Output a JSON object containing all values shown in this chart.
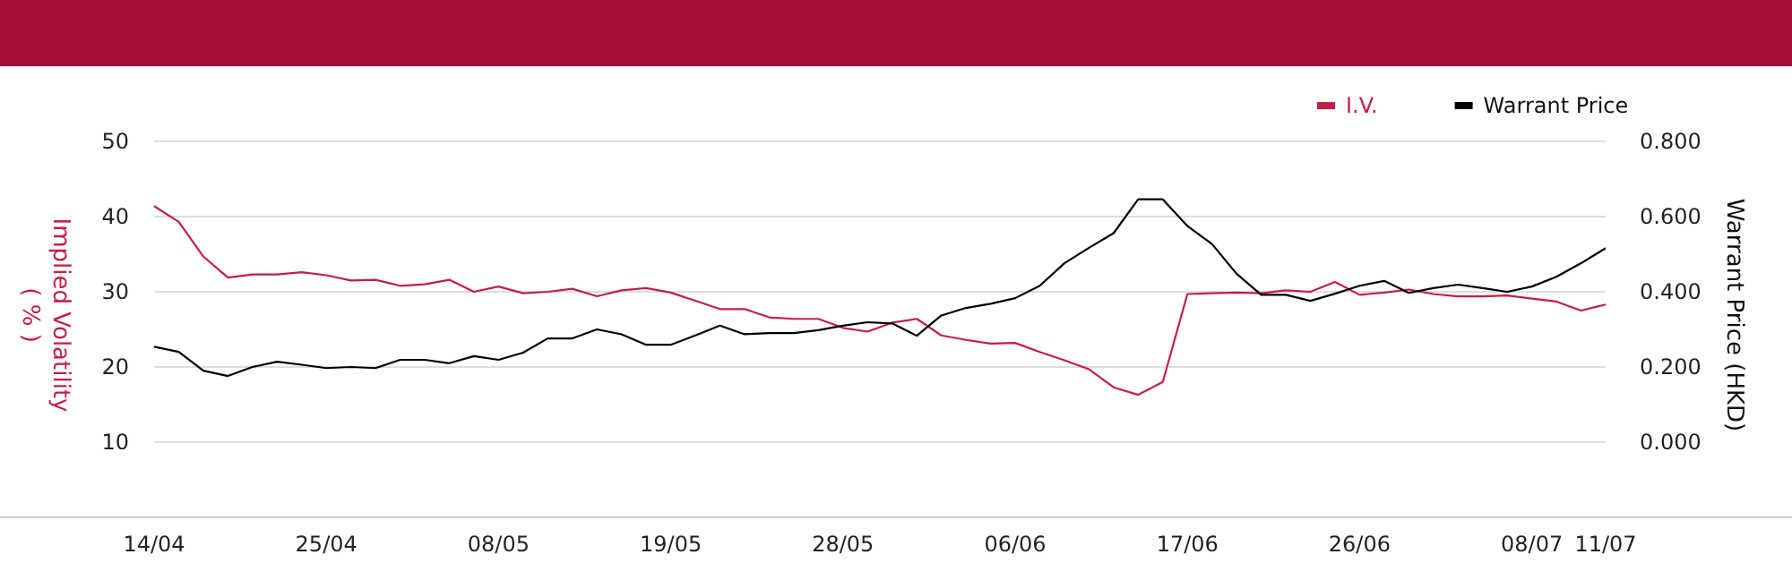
{
  "chart_data": {
    "type": "line",
    "ylabel": "Implied Volatility\n( % )",
    "y2label": "Warrant Price (HKD)",
    "categories": [
      "14/04",
      null,
      null,
      null,
      null,
      null,
      null,
      "25/04",
      null,
      null,
      null,
      null,
      null,
      null,
      "08/05",
      null,
      null,
      null,
      null,
      null,
      null,
      "19/05",
      null,
      null,
      null,
      null,
      null,
      null,
      "28/05",
      null,
      null,
      null,
      null,
      null,
      null,
      "06/06",
      null,
      null,
      null,
      null,
      null,
      null,
      "17/06",
      null,
      null,
      null,
      null,
      null,
      null,
      "26/06",
      null,
      null,
      null,
      null,
      null,
      null,
      "08/07",
      null,
      null,
      "11/07"
    ],
    "ylim": [
      0,
      50
    ],
    "yticks": [
      10,
      20,
      30,
      40,
      50
    ],
    "y2lim": [
      -0.2,
      0.8
    ],
    "y2ticks": [
      {
        "value": 0,
        "label": "0.000"
      },
      {
        "value": 0.2,
        "label": "0.200"
      },
      {
        "value": 0.4,
        "label": "0.400"
      },
      {
        "value": 0.6,
        "label": "0.600"
      },
      {
        "value": 0.8,
        "label": "0.800"
      }
    ],
    "grid": "y",
    "legend": "top right",
    "series": [
      {
        "name": "I.V.",
        "color": "#c41e45",
        "values": [
          41.4,
          39.3,
          34.7,
          31.9,
          32.3,
          32.3,
          32.6,
          32.2,
          31.5,
          31.6,
          30.8,
          31.0,
          31.6,
          30.0,
          30.7,
          29.8,
          30.0,
          30.4,
          29.4,
          30.2,
          30.5,
          29.9,
          28.8,
          27.7,
          27.7,
          26.6,
          26.4,
          26.4,
          25.2,
          24.7,
          25.9,
          26.4,
          24.2,
          23.6,
          23.1,
          23.2,
          22.0,
          20.9,
          19.7,
          17.3,
          16.3,
          18.0,
          29.7,
          29.8,
          29.9,
          29.8,
          30.2,
          30.0,
          31.3,
          29.6,
          29.9,
          30.3,
          29.7,
          29.4,
          29.4,
          29.5,
          29.1,
          28.7,
          27.5,
          28.3
        ]
      },
      {
        "name": "Warrant Price",
        "color": "#000000",
        "axis": "y2",
        "values": [
          0.254,
          0.24,
          0.19,
          0.176,
          0.2,
          0.214,
          0.206,
          0.197,
          0.2,
          0.197,
          0.219,
          0.219,
          0.21,
          0.229,
          0.219,
          0.238,
          0.276,
          0.276,
          0.3,
          0.287,
          0.259,
          0.259,
          0.284,
          0.31,
          0.287,
          0.29,
          0.29,
          0.298,
          0.31,
          0.319,
          0.316,
          0.283,
          0.337,
          0.357,
          0.368,
          0.383,
          0.416,
          0.476,
          0.517,
          0.556,
          0.646,
          0.646,
          0.575,
          0.527,
          0.448,
          0.392,
          0.392,
          0.376,
          0.395,
          0.416,
          0.429,
          0.397,
          0.41,
          0.419,
          0.41,
          0.4,
          0.414,
          0.44,
          0.476,
          0.516
        ]
      }
    ]
  }
}
